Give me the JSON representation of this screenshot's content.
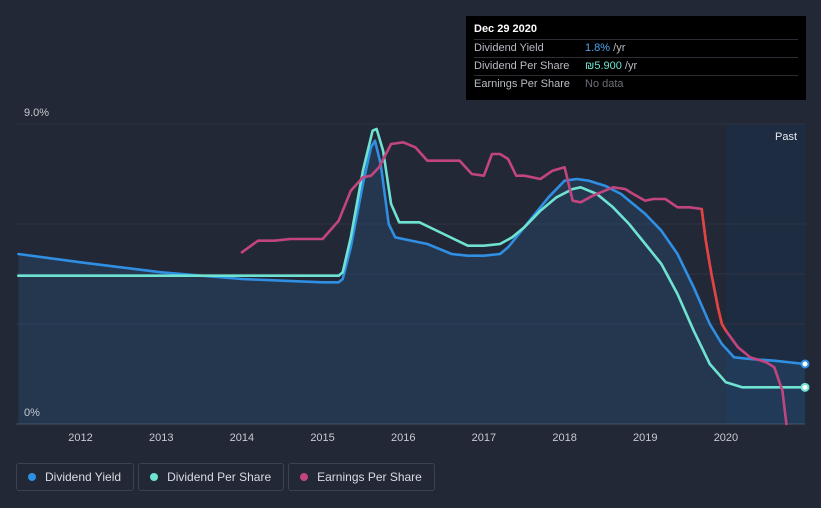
{
  "tooltip": {
    "date": "Dec 29 2020",
    "rows": [
      {
        "label": "Dividend Yield",
        "value_num": "1.8%",
        "value_unit": " /yr"
      },
      {
        "label": "Dividend Per Share",
        "value_num": "₪5.900",
        "value_unit": " /yr"
      },
      {
        "label": "Earnings Per Share",
        "value_text": "No data"
      }
    ]
  },
  "past_label": "Past",
  "legend": [
    {
      "label": "Dividend Yield",
      "color": "#2f8fe3"
    },
    {
      "label": "Dividend Per Share",
      "color": "#6fe3d2"
    },
    {
      "label": "Earnings Per Share",
      "color": "#c2457f"
    }
  ],
  "colors": {
    "background": "#232836",
    "future_band": "#1b2f4d",
    "ylabel": "#c7cad1",
    "grid": "#2e3342"
  },
  "chart_data": {
    "type": "line",
    "title": "",
    "y_top_label": "9.0%",
    "y_bottom_label": "0%",
    "ylim": [
      0,
      9.0
    ],
    "xlim": [
      2011.2,
      2020.98
    ],
    "x_ticks": [
      "2012",
      "2013",
      "2014",
      "2015",
      "2016",
      "2017",
      "2018",
      "2019",
      "2020"
    ],
    "x_tick_values": [
      2012,
      2013,
      2014,
      2015,
      2016,
      2017,
      2018,
      2019,
      2020
    ],
    "past_start": 2020.0,
    "series": [
      {
        "name": "Dividend Yield",
        "color": "#2f8fe3",
        "fill": true,
        "x": [
          2011.23,
          2012.0,
          2012.5,
          2013.0,
          2013.5,
          2014.0,
          2014.5,
          2015.0,
          2015.2,
          2015.25,
          2015.35,
          2015.5,
          2015.6,
          2015.65,
          2015.72,
          2015.82,
          2015.9,
          2016.0,
          2016.3,
          2016.6,
          2016.8,
          2017.0,
          2017.2,
          2017.3,
          2017.4,
          2017.6,
          2017.8,
          2018.0,
          2018.15,
          2018.3,
          2018.5,
          2018.7,
          2019.0,
          2019.2,
          2019.4,
          2019.6,
          2019.8,
          2019.95,
          2020.1,
          2020.3,
          2020.6,
          2020.98
        ],
        "y": [
          5.1,
          4.85,
          4.7,
          4.55,
          4.45,
          4.35,
          4.3,
          4.25,
          4.25,
          4.35,
          5.3,
          7.2,
          8.3,
          8.5,
          7.8,
          6.0,
          5.6,
          5.55,
          5.4,
          5.1,
          5.05,
          5.05,
          5.1,
          5.3,
          5.6,
          6.2,
          6.8,
          7.3,
          7.35,
          7.3,
          7.15,
          6.9,
          6.3,
          5.8,
          5.1,
          4.1,
          3.0,
          2.4,
          2.0,
          1.95,
          1.9,
          1.8
        ]
      },
      {
        "name": "Dividend Per Share",
        "color": "#6fe3d2",
        "fill": false,
        "x": [
          2011.23,
          2012.0,
          2013.0,
          2014.0,
          2015.0,
          2015.2,
          2015.25,
          2015.35,
          2015.5,
          2015.62,
          2015.67,
          2015.75,
          2015.85,
          2015.95,
          2016.2,
          2016.5,
          2016.8,
          2017.0,
          2017.2,
          2017.35,
          2017.5,
          2017.7,
          2017.9,
          2018.1,
          2018.2,
          2018.4,
          2018.6,
          2018.8,
          2019.0,
          2019.2,
          2019.4,
          2019.6,
          2019.8,
          2020.0,
          2020.2,
          2020.5,
          2020.98
        ],
        "y": [
          4.45,
          4.45,
          4.45,
          4.45,
          4.45,
          4.45,
          4.55,
          5.6,
          7.6,
          8.8,
          8.85,
          8.2,
          6.6,
          6.05,
          6.05,
          5.7,
          5.35,
          5.35,
          5.4,
          5.6,
          5.9,
          6.4,
          6.8,
          7.05,
          7.1,
          6.9,
          6.5,
          6.0,
          5.4,
          4.8,
          3.9,
          2.8,
          1.8,
          1.25,
          1.1,
          1.1,
          1.1
        ]
      },
      {
        "name": "Earnings Per Share",
        "color": "#c2457f",
        "fill": false,
        "x": [
          2014.0,
          2014.2,
          2014.4,
          2014.6,
          2014.8,
          2015.0,
          2015.2,
          2015.35,
          2015.5,
          2015.6,
          2015.7,
          2015.85,
          2016.0,
          2016.15,
          2016.3,
          2016.5,
          2016.7,
          2016.85,
          2017.0,
          2017.1,
          2017.2,
          2017.3,
          2017.4,
          2017.5,
          2017.7,
          2017.85,
          2018.0,
          2018.1,
          2018.2,
          2018.35,
          2018.5,
          2018.6,
          2018.75,
          2018.85,
          2019.0,
          2019.1,
          2019.25,
          2019.4,
          2019.55,
          2019.7,
          2019.75,
          2019.82,
          2019.9,
          2019.95,
          2020.0,
          2020.15,
          2020.3,
          2020.5,
          2020.6,
          2020.7,
          2020.75
        ],
        "y": [
          5.15,
          5.5,
          5.5,
          5.55,
          5.55,
          5.55,
          6.1,
          7.0,
          7.4,
          7.45,
          7.7,
          8.4,
          8.45,
          8.3,
          7.9,
          7.9,
          7.9,
          7.5,
          7.45,
          8.1,
          8.1,
          7.95,
          7.45,
          7.45,
          7.35,
          7.6,
          7.7,
          6.7,
          6.65,
          6.85,
          7.0,
          7.1,
          7.05,
          6.9,
          6.7,
          6.75,
          6.75,
          6.5,
          6.5,
          6.45,
          5.5,
          4.5,
          3.5,
          3.0,
          2.8,
          2.3,
          2.0,
          1.85,
          1.7,
          1.0,
          0.0
        ]
      }
    ],
    "end_markers": [
      {
        "series": "Dividend Yield",
        "x": 2020.98,
        "y": 1.8
      },
      {
        "series": "Dividend Per Share",
        "x": 2020.98,
        "y": 1.1
      }
    ]
  }
}
